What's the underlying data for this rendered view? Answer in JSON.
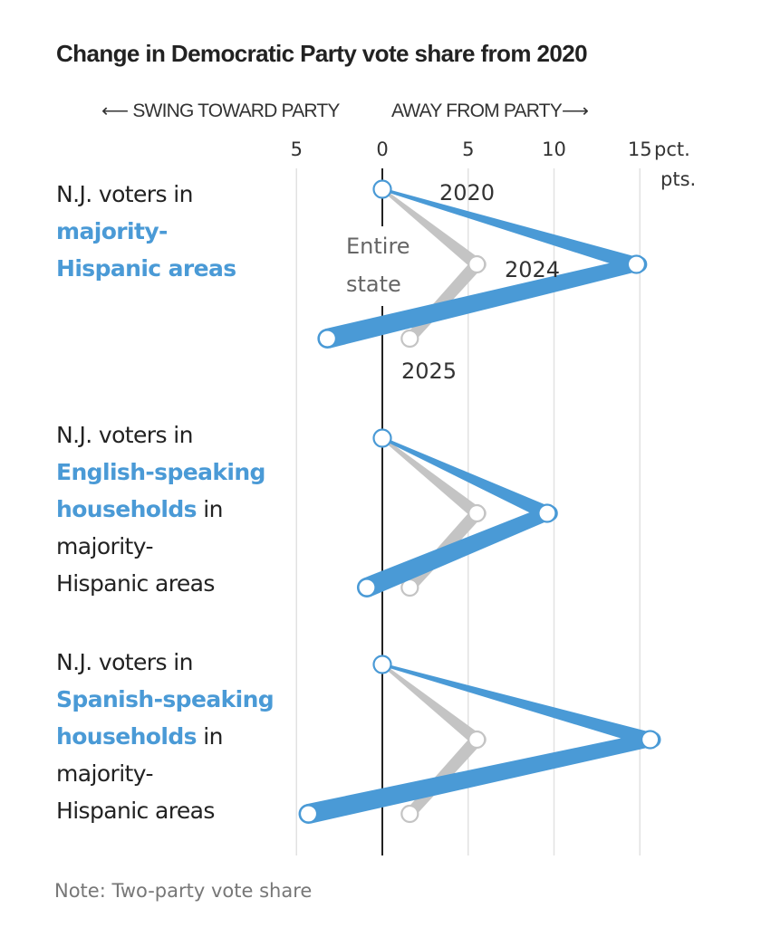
{
  "title": "Change in Democratic Party vote share from 2020",
  "direction": {
    "left": "⟵ SWING TOWARD PARTY",
    "right": "AWAY FROM PARTY⟶"
  },
  "note": "Note: Two-party vote share",
  "colors": {
    "group": "#4a9ad6",
    "state": "#c4c4c4",
    "axis": "#222222",
    "grid": "#e2e2e2"
  },
  "chart_data": {
    "type": "line",
    "title": "Change in Democratic Party vote share from 2020",
    "xlabel": "pct. pts.",
    "x_unit_lines": [
      "pct.",
      "pts."
    ],
    "xlim": [
      -5.3,
      16.5
    ],
    "x_ticks": [
      {
        "value": -5,
        "label": "5"
      },
      {
        "value": 0,
        "label": "0"
      },
      {
        "value": 5,
        "label": "5"
      },
      {
        "value": 10,
        "label": "10"
      },
      {
        "value": 15,
        "label": "15"
      }
    ],
    "grid": true,
    "years": [
      "2020",
      "2024",
      "2025"
    ],
    "reference": {
      "name": "Entire state",
      "label_lines": [
        "Entire",
        "state"
      ],
      "values": [
        0,
        5.5,
        1.6
      ]
    },
    "panels": [
      {
        "label_parts": [
          {
            "text": "N.J. voters in",
            "highlight": false,
            "br": true
          },
          {
            "text": "majority-",
            "highlight": true,
            "br": true
          },
          {
            "text": "Hispanic areas",
            "highlight": true,
            "br": false
          }
        ],
        "series_name": "N.J. voters in majority-Hispanic areas",
        "values": [
          0,
          14.8,
          -3.2
        ],
        "show_year_labels": true
      },
      {
        "label_parts": [
          {
            "text": "N.J. voters in",
            "highlight": false,
            "br": true
          },
          {
            "text": "English-speaking",
            "highlight": true,
            "br": true
          },
          {
            "text": "households",
            "highlight": true,
            "br": false
          },
          {
            "text": " in",
            "highlight": false,
            "br": true
          },
          {
            "text": "majority-",
            "highlight": false,
            "br": true
          },
          {
            "text": "Hispanic areas",
            "highlight": false,
            "br": false
          }
        ],
        "series_name": "N.J. voters in English-speaking households in majority-Hispanic areas",
        "values": [
          0,
          9.6,
          -0.9
        ],
        "show_year_labels": false
      },
      {
        "label_parts": [
          {
            "text": "N.J. voters in",
            "highlight": false,
            "br": true
          },
          {
            "text": "Spanish-speaking",
            "highlight": true,
            "br": true
          },
          {
            "text": "households",
            "highlight": true,
            "br": false
          },
          {
            "text": " in",
            "highlight": false,
            "br": true
          },
          {
            "text": "majority-",
            "highlight": false,
            "br": true
          },
          {
            "text": "Hispanic areas",
            "highlight": false,
            "br": false
          }
        ],
        "series_name": "N.J. voters in Spanish-speaking households in majority-Hispanic areas",
        "values": [
          0,
          15.6,
          -4.3
        ],
        "show_year_labels": false
      }
    ]
  }
}
